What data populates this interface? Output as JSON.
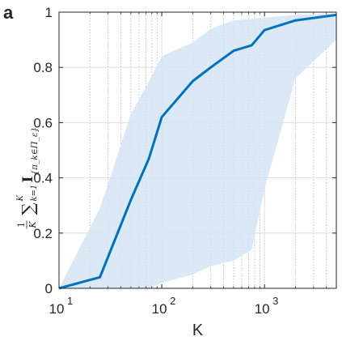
{
  "panel_label": "a",
  "chart_data": {
    "type": "line",
    "xscale": "log",
    "xlim": [
      10,
      5000
    ],
    "ylim": [
      0,
      1
    ],
    "xlabel": "K",
    "ylabel": "(1/K) Σ_{k=1}^{K} I_{π_k ∈ Π_ε}",
    "ylabel_math": {
      "frac_num": "1",
      "frac_den": "K",
      "sum_lower": "k=1",
      "sum_upper": "K",
      "indicator": "I",
      "subscript": "{π_k∈Π_ε}"
    },
    "x_ticks": [
      {
        "value": 10,
        "base": "10",
        "exp": "1"
      },
      {
        "value": 100,
        "base": "10",
        "exp": "2"
      },
      {
        "value": 1000,
        "base": "10",
        "exp": "3"
      }
    ],
    "y_ticks": [
      {
        "value": 0,
        "label": "0"
      },
      {
        "value": 0.2,
        "label": "0.2"
      },
      {
        "value": 0.4,
        "label": "0.4"
      },
      {
        "value": 0.6,
        "label": "0.6"
      },
      {
        "value": 0.8,
        "label": "0.8"
      },
      {
        "value": 1,
        "label": "1"
      }
    ],
    "grid": true,
    "series": [
      {
        "x": [
          10,
          25,
          50,
          75,
          100,
          200,
          300,
          500,
          750,
          1000,
          2000,
          5000
        ],
        "values": [
          0.0,
          0.04,
          0.32,
          0.47,
          0.62,
          0.75,
          0.8,
          0.86,
          0.88,
          0.935,
          0.97,
          0.99
        ],
        "color": "#0072BD"
      }
    ],
    "band": {
      "x": [
        10,
        25,
        50,
        75,
        100,
        200,
        300,
        500,
        750,
        1000,
        2000,
        5000
      ],
      "upper": [
        0.0,
        0.29,
        0.63,
        0.75,
        0.84,
        0.89,
        0.94,
        0.97,
        0.975,
        0.98,
        0.99,
        0.995
      ],
      "lower": [
        0.0,
        0.0,
        0.0,
        0.0,
        0.02,
        0.05,
        0.08,
        0.1,
        0.14,
        0.36,
        0.76,
        0.9
      ],
      "color": "#D3E5F3"
    }
  }
}
